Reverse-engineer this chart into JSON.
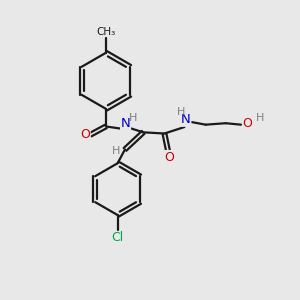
{
  "bg_color": "#e8e8e8",
  "bond_color": "#1a1a1a",
  "N_color": "#0000cc",
  "O_color": "#cc0000",
  "Cl_color": "#00aa44",
  "H_color": "#808080",
  "bond_lw": 1.6,
  "figsize": [
    3.0,
    3.0
  ],
  "dpi": 100,
  "xlim": [
    0,
    10
  ],
  "ylim": [
    0,
    10
  ]
}
